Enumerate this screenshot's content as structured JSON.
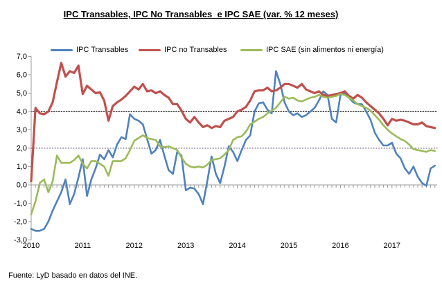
{
  "title": "IPC Transables, IPC No Transables  e IPC SAE (var. % 12 meses)",
  "source": "Fuente: LyD basado en datos del INE.",
  "chart_data": {
    "type": "line",
    "title": "IPC Transables, IPC No Transables  e IPC SAE (var. % 12 meses)",
    "x_frequency": "monthly",
    "x_start": "2010-01",
    "x_end": "2017-11",
    "x_tick_labels": [
      "2010",
      "2011",
      "2012",
      "2013",
      "2014",
      "2015",
      "2016",
      "2017"
    ],
    "y_tick_labels": [
      "7,0",
      "6,0",
      "5,0",
      "4,0",
      "3,0",
      "2,0",
      "1,0",
      "0,0",
      "-1,0",
      "-2,0",
      "-3,0"
    ],
    "ylim": [
      -3,
      7
    ],
    "legend_position": "top",
    "grid": "off",
    "reference_lines": [
      {
        "value": 4.0,
        "style": "dotted",
        "color": "#000000"
      },
      {
        "value": 2.0,
        "style": "dotted",
        "color": "#5F497A"
      }
    ],
    "axis_color": "#9b9b9b",
    "series": [
      {
        "name": "IPC Transables",
        "color": "#4F81BD",
        "values": [
          -2.4,
          -2.5,
          -2.5,
          -2.4,
          -2.0,
          -1.4,
          -0.9,
          -0.4,
          0.3,
          -1.05,
          -0.5,
          0.4,
          1.4,
          -0.6,
          0.3,
          0.9,
          1.65,
          1.4,
          1.9,
          1.5,
          2.2,
          2.6,
          2.5,
          3.85,
          3.6,
          3.5,
          3.3,
          2.5,
          1.7,
          1.9,
          2.45,
          1.6,
          0.8,
          0.6,
          1.8,
          1.6,
          -0.3,
          -0.15,
          -0.2,
          -0.5,
          -1.05,
          0.2,
          1.55,
          0.6,
          0.1,
          1.0,
          2.1,
          1.8,
          1.3,
          1.9,
          2.45,
          2.7,
          4.0,
          4.45,
          4.5,
          4.1,
          3.9,
          6.2,
          5.5,
          4.5,
          4.0,
          3.8,
          3.9,
          3.7,
          3.8,
          4.0,
          4.2,
          4.6,
          5.1,
          4.9,
          3.6,
          3.4,
          4.9,
          5.0,
          4.75,
          4.5,
          4.4,
          4.4,
          4.0,
          3.55,
          2.85,
          2.45,
          2.15,
          2.15,
          2.3,
          1.7,
          1.45,
          0.9,
          0.6,
          1.0,
          0.45,
          0.1,
          -0.05,
          0.9,
          1.05
        ]
      },
      {
        "name": "IPC no Transables",
        "color": "#C0504D",
        "values": [
          0.2,
          4.2,
          3.9,
          3.85,
          4.0,
          4.5,
          5.6,
          6.65,
          5.9,
          6.2,
          6.1,
          6.5,
          4.95,
          5.4,
          5.2,
          5.0,
          5.05,
          4.6,
          3.5,
          4.3,
          4.5,
          4.65,
          4.85,
          5.1,
          5.35,
          5.2,
          5.5,
          5.1,
          5.15,
          5.0,
          5.1,
          4.9,
          4.75,
          4.4,
          4.4,
          4.05,
          3.6,
          3.4,
          3.7,
          3.4,
          3.15,
          3.25,
          3.1,
          3.2,
          3.15,
          3.5,
          3.6,
          3.7,
          4.0,
          4.1,
          4.25,
          4.6,
          5.1,
          5.15,
          5.15,
          5.3,
          5.1,
          5.15,
          5.3,
          5.5,
          5.5,
          5.4,
          5.3,
          5.5,
          5.2,
          5.1,
          5.0,
          5.1,
          4.9,
          4.85,
          4.9,
          4.95,
          5.0,
          5.1,
          4.85,
          4.7,
          4.9,
          4.75,
          4.5,
          4.3,
          4.1,
          3.9,
          3.6,
          3.25,
          3.6,
          3.5,
          3.55,
          3.5,
          3.4,
          3.3,
          3.3,
          3.4,
          3.2,
          3.15,
          3.1
        ]
      },
      {
        "name": "IPC SAE (sin alimentos ni energía)",
        "color": "#9BBB59",
        "values": [
          -1.6,
          -0.9,
          0.1,
          0.3,
          -0.4,
          0.2,
          1.6,
          1.2,
          1.2,
          1.2,
          1.35,
          1.6,
          1.15,
          0.9,
          1.3,
          1.3,
          1.15,
          1.0,
          0.5,
          1.3,
          1.3,
          1.3,
          1.45,
          1.9,
          2.4,
          2.55,
          2.7,
          2.55,
          2.5,
          2.45,
          2.1,
          2.05,
          2.1,
          2.0,
          1.9,
          1.5,
          1.15,
          1.0,
          0.95,
          1.0,
          0.95,
          1.1,
          1.35,
          1.4,
          1.45,
          1.65,
          1.9,
          2.45,
          2.6,
          2.65,
          2.9,
          3.3,
          3.45,
          3.6,
          3.7,
          3.9,
          4.05,
          4.2,
          4.5,
          4.8,
          4.7,
          4.75,
          4.6,
          4.55,
          4.65,
          4.75,
          4.8,
          4.9,
          4.8,
          4.75,
          4.8,
          4.85,
          4.95,
          4.9,
          4.75,
          4.6,
          4.4,
          4.3,
          4.2,
          4.05,
          3.8,
          3.55,
          3.25,
          3.0,
          2.8,
          2.65,
          2.5,
          2.4,
          2.2,
          1.95,
          1.9,
          1.85,
          1.8,
          1.9,
          1.85
        ]
      }
    ]
  }
}
